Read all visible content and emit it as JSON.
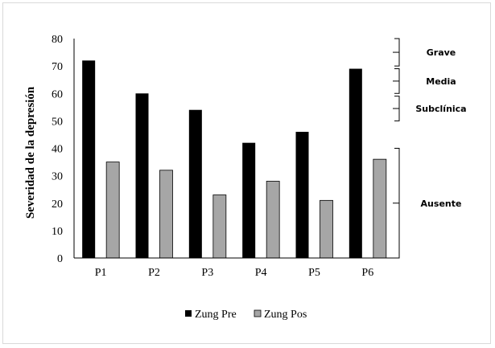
{
  "chart_data": {
    "type": "bar",
    "categories": [
      "P1",
      "P2",
      "P3",
      "P4",
      "P5",
      "P6"
    ],
    "series": [
      {
        "name": "Zung Pre",
        "values": [
          72,
          60,
          54,
          42,
          46,
          69
        ],
        "color": "#000000"
      },
      {
        "name": "Zung Pos",
        "values": [
          35,
          32,
          23,
          28,
          21,
          36
        ],
        "color": "#a6a6a6"
      }
    ],
    "ylabel": "Severidad de la depresión",
    "ylim": [
      0,
      80
    ],
    "yticks": [
      0,
      10,
      20,
      30,
      40,
      50,
      60,
      70,
      80
    ],
    "grid": false,
    "legend": "bottom",
    "severity_bands": [
      {
        "label": "Grave",
        "from": 70,
        "to": 80
      },
      {
        "label": "Media",
        "from": 60,
        "to": 69
      },
      {
        "label": "Subclínica",
        "from": 50,
        "to": 59
      },
      {
        "label": "Ausente",
        "from": 0,
        "to": 40
      }
    ]
  }
}
